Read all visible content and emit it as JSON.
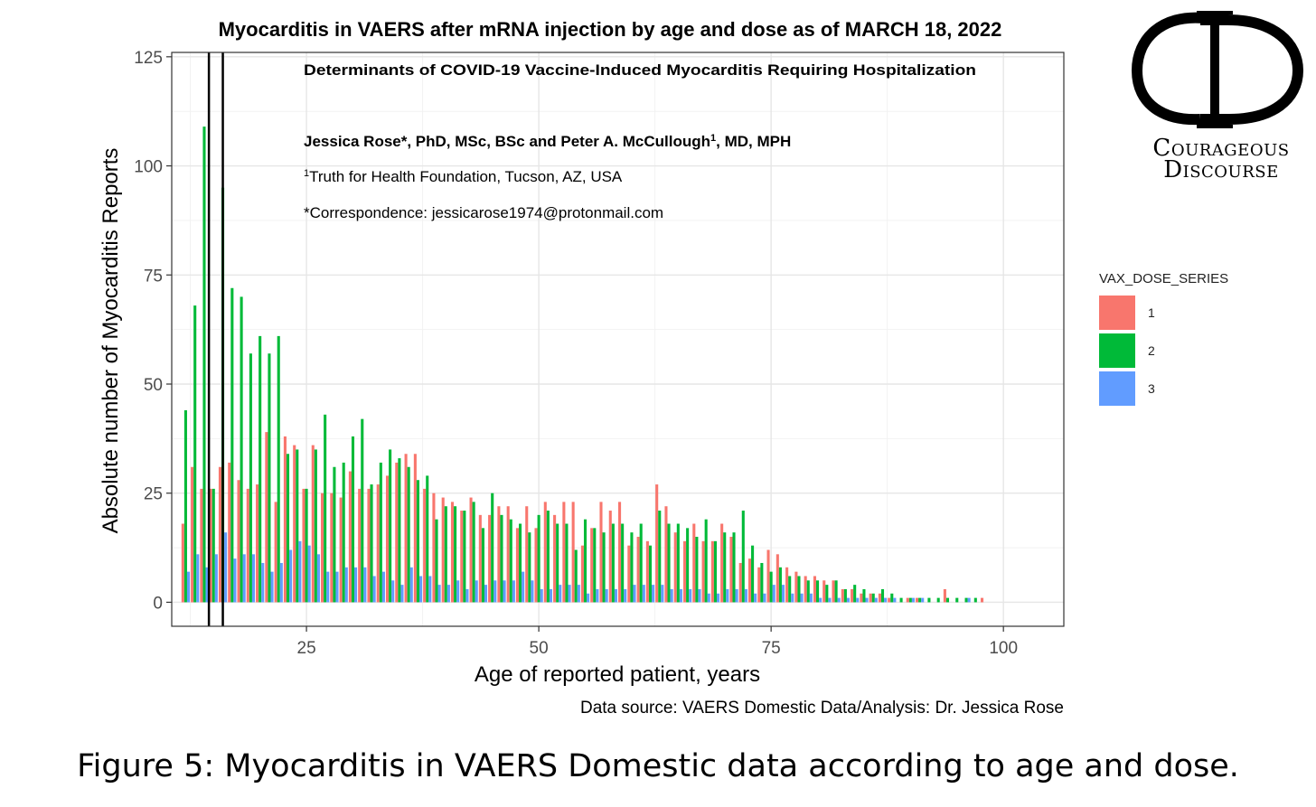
{
  "chart_data": {
    "type": "bar",
    "title": "Myocarditis in VAERS after mRNA injection by age and dose as of MARCH 18, 2022",
    "xlabel": "Age of reported patient, years",
    "ylabel": "Absolute number of Myocarditis Reports",
    "xlim": [
      10.5,
      106.5
    ],
    "ylim": [
      -5.5,
      126
    ],
    "xticks": [
      25,
      50,
      75,
      100
    ],
    "yticks": [
      0,
      25,
      50,
      75,
      100,
      125
    ],
    "grid": true,
    "legend_position": "right",
    "legend_title": "VAX_DOSE_SERIES",
    "vlines": [
      14.5,
      16
    ],
    "x": [
      12,
      13,
      14,
      15,
      16,
      17,
      18,
      19,
      20,
      21,
      22,
      23,
      24,
      25,
      26,
      27,
      28,
      29,
      30,
      31,
      32,
      33,
      34,
      35,
      36,
      37,
      38,
      39,
      40,
      41,
      42,
      43,
      44,
      45,
      46,
      47,
      48,
      49,
      50,
      51,
      52,
      53,
      54,
      55,
      56,
      57,
      58,
      59,
      60,
      61,
      62,
      63,
      64,
      65,
      66,
      67,
      68,
      69,
      70,
      71,
      72,
      73,
      74,
      75,
      76,
      77,
      78,
      79,
      80,
      81,
      82,
      83,
      84,
      85,
      86,
      87,
      88,
      89,
      90,
      91,
      92,
      93,
      94,
      95,
      96,
      97,
      98
    ],
    "series": [
      {
        "name": "1",
        "color": "#F8766D",
        "values": [
          18,
          31,
          26,
          26,
          31,
          32,
          28,
          26,
          27,
          39,
          23,
          38,
          36,
          26,
          36,
          25,
          25,
          24,
          30,
          26,
          26,
          27,
          29,
          32,
          34,
          34,
          26,
          25,
          24,
          23,
          21,
          24,
          20,
          20,
          22,
          22,
          17,
          22,
          17,
          23,
          20,
          23,
          23,
          13,
          17,
          23,
          21,
          23,
          13,
          15,
          14,
          27,
          22,
          16,
          14,
          18,
          14,
          14,
          18,
          15,
          9,
          10,
          8,
          12,
          11,
          8,
          7,
          6,
          6,
          5,
          5,
          3,
          3,
          2,
          2,
          2,
          1,
          0,
          1,
          1,
          0,
          0,
          3,
          0,
          0,
          0,
          1
        ]
      },
      {
        "name": "2",
        "color": "#00BA38",
        "values": [
          44,
          68,
          109,
          26,
          95,
          72,
          70,
          57,
          61,
          57,
          61,
          34,
          35,
          26,
          35,
          43,
          31,
          32,
          38,
          42,
          27,
          32,
          35,
          33,
          31,
          28,
          29,
          19,
          22,
          22,
          21,
          23,
          17,
          25,
          20,
          19,
          18,
          16,
          20,
          21,
          18,
          18,
          12,
          19,
          17,
          16,
          18,
          18,
          16,
          18,
          13,
          21,
          18,
          18,
          17,
          15,
          19,
          14,
          16,
          16,
          21,
          13,
          9,
          7,
          8,
          6,
          6,
          5,
          5,
          4,
          5,
          3,
          4,
          3,
          2,
          3,
          2,
          1,
          1,
          1,
          1,
          1,
          1,
          1,
          1,
          1,
          0
        ]
      },
      {
        "name": "3",
        "color": "#619CFF",
        "values": [
          7,
          11,
          8,
          11,
          16,
          10,
          11,
          11,
          9,
          7,
          9,
          12,
          14,
          13,
          11,
          7,
          7,
          8,
          8,
          8,
          6,
          7,
          5,
          4,
          8,
          6,
          6,
          4,
          4,
          5,
          3,
          5,
          4,
          5,
          5,
          5,
          7,
          5,
          3,
          3,
          4,
          4,
          4,
          2,
          3,
          3,
          3,
          3,
          4,
          4,
          4,
          4,
          3,
          3,
          3,
          3,
          2,
          2,
          3,
          3,
          3,
          2,
          2,
          4,
          4,
          2,
          2,
          2,
          1,
          1,
          1,
          1,
          1,
          1,
          1,
          1,
          1,
          0,
          1,
          1,
          0,
          0,
          0,
          0,
          1,
          0,
          0
        ]
      }
    ]
  },
  "annotation": {
    "title": "Determinants of COVID-19 Vaccine-Induced Myocarditis Requiring Hospitalization",
    "authors_main": "Jessica Rose*, PhD, MSc, BSc and Peter A. McCullough",
    "authors_sup": "1",
    "authors_end": ", MD, MPH",
    "affiliation_sup": "1",
    "affiliation": "Truth for Health Foundation, Tucson, AZ, USA",
    "correspondence": "*Correspondence: jessicarose1974@protonmail.com"
  },
  "source": "Data source: VAERS Domestic Data/Analysis: Dr. Jessica Rose",
  "caption": "Figure 5: Myocarditis in VAERS Domestic data according to age and dose.",
  "logo": {
    "letters": "CD",
    "line1": "Courageous",
    "line2": "Discourse"
  }
}
